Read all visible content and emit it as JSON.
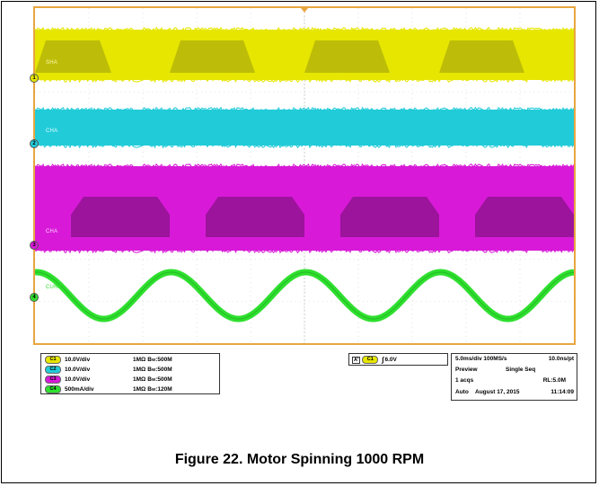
{
  "figure": {
    "caption": "Figure 22. Motor Spinning 1000 RPM"
  },
  "chart_data": {
    "type": "line",
    "title": "",
    "grid": true,
    "timebase": "5.0ms/div",
    "series": [
      {
        "name": "SHA",
        "channel": "1",
        "color": "#e6e600",
        "kind": "digital"
      },
      {
        "name": "CHA",
        "channel": "2",
        "color": "#22cbd8",
        "kind": "digital"
      },
      {
        "name": "CHA",
        "channel": "3",
        "color": "#d81ad8",
        "kind": "digital"
      },
      {
        "name": "CURA",
        "channel": "4",
        "color": "#2fe02f",
        "kind": "sine"
      }
    ]
  },
  "channels": [
    {
      "id": "C1",
      "scale": "10.0V/div",
      "imp": "1MΩ",
      "bw_label": "B",
      "bw_sub": "W",
      "bw": ":500M",
      "color": "#e6e600"
    },
    {
      "id": "C2",
      "scale": "10.0V/div",
      "imp": "1MΩ",
      "bw_label": "B",
      "bw_sub": "W",
      "bw": ":500M",
      "color": "#22cbd8"
    },
    {
      "id": "C3",
      "scale": "10.0V/div",
      "imp": "1MΩ",
      "bw_label": "B",
      "bw_sub": "W",
      "bw": ":500M",
      "color": "#d81ad8"
    },
    {
      "id": "C4",
      "scale": "500mA/div",
      "imp": "1MΩ",
      "bw_label": "B",
      "bw_sub": "W",
      "bw": ":120M",
      "color": "#2fe02f"
    }
  ],
  "trigger": {
    "mode": "A'",
    "channel": "C1",
    "level": "6.0V"
  },
  "acquisition": {
    "row1_a": "5.0ms/div 100MS/s",
    "row1_b": "10.0ns/pt",
    "row2_a": "Preview",
    "row2_b": "Single Seq",
    "row3_a": "1 acqs",
    "row3_b": "RL:5.0M",
    "row4_a": "Auto",
    "row4_b": "August 17, 2015",
    "row4_c": "11:14:09"
  },
  "trace_labels": {
    "ch1": "SHA",
    "ch2": "CHA",
    "ch3": "CHA",
    "ch4": "CURA"
  },
  "markers": {
    "ch1": "1",
    "ch2": "2",
    "ch3": "3",
    "ch4": "4"
  }
}
